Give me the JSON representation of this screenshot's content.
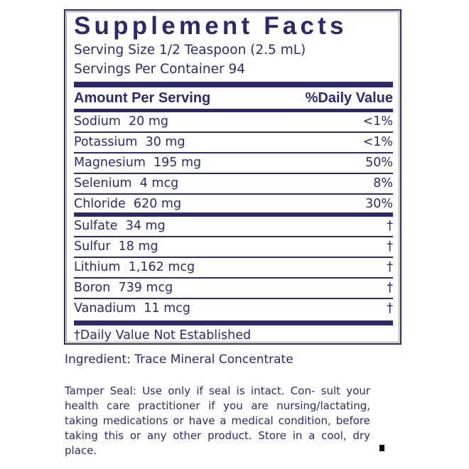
{
  "title": "Supplement Facts",
  "serving_size": "Serving Size 1/2 Teaspoon (2.5 mL)",
  "servings_per_container": "Servings Per Container 94",
  "header": {
    "amount": "Amount Per Serving",
    "dv": "%Daily Value"
  },
  "group1": [
    {
      "name": "Sodium  20 mg",
      "dv": "<1%"
    },
    {
      "name": "Potassium  30 mg",
      "dv": "<1%"
    },
    {
      "name": "Magnesium  195 mg",
      "dv": "50%"
    },
    {
      "name": "Selenium  4 mcg",
      "dv": "8%"
    },
    {
      "name": "Chloride  620 mg",
      "dv": "30%"
    }
  ],
  "group2": [
    {
      "name": "Sulfate  34 mg",
      "dv": "†"
    },
    {
      "name": "Sulfur  18 mg",
      "dv": "†"
    },
    {
      "name": "Lithium  1,162 mcg",
      "dv": "†"
    },
    {
      "name": "Boron  739 mcg",
      "dv": "†"
    },
    {
      "name": "Vanadium  11 mcg",
      "dv": "†"
    }
  ],
  "footnote": "†Daily Value Not Established",
  "ingredient": "Ingredient: Trace Mineral Concentrate",
  "tamper": "Tamper Seal: Use only if seal is intact. Con- sult your health care practitioner if you are nursing/lactating, taking medications or have a medical condition, before taking this or any other product. Store in a cool, dry place.",
  "colors": {
    "label": "#2b2a6e"
  }
}
